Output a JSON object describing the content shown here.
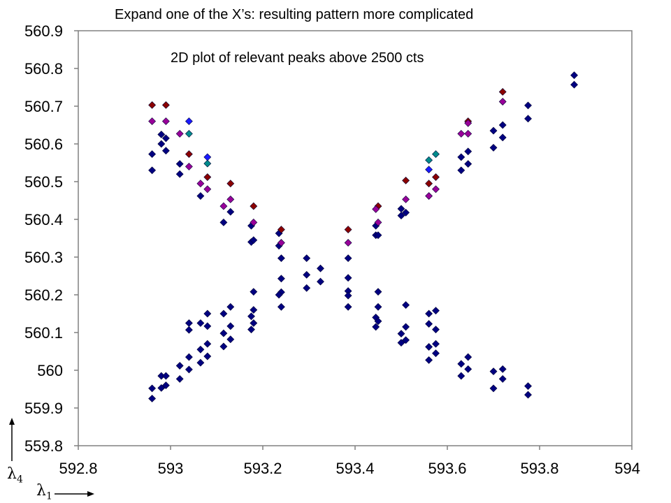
{
  "slide_title": "Expand one of the X’s:  resulting pattern more complicated",
  "axis_labels": {
    "y_symbol": "λ",
    "y_sub": "4",
    "x_symbol": "λ",
    "x_sub": "1"
  },
  "colors": {
    "navy": "#000080",
    "dark_red": "#8b0000",
    "purple": "#990099",
    "teal": "#008b8b",
    "blue": "#1a1aff",
    "plot_border": "#808080"
  },
  "chart_data": {
    "type": "scatter",
    "title": "2D plot of relevant peaks above 2500 cts",
    "xlabel": "λ1",
    "ylabel": "λ4",
    "xlim": [
      592.8,
      594.0
    ],
    "ylim": [
      559.8,
      560.9
    ],
    "x_ticks": [
      "592.8",
      "593",
      "593.2",
      "593.4",
      "593.6",
      "593.8",
      "594"
    ],
    "y_ticks": [
      "559.8",
      "559.9",
      "560",
      "560.1",
      "560.2",
      "560.3",
      "560.4",
      "560.5",
      "560.6",
      "560.7",
      "560.8",
      "560.9"
    ],
    "grid": false,
    "legend": false,
    "series": [
      {
        "color": "#000080",
        "points": [
          [
            592.96,
            560.573
          ],
          [
            592.96,
            560.53
          ],
          [
            592.98,
            560.625
          ],
          [
            592.98,
            560.6
          ],
          [
            592.99,
            560.615
          ],
          [
            592.99,
            560.582
          ],
          [
            593.02,
            560.547
          ],
          [
            593.02,
            560.52
          ],
          [
            593.065,
            560.462
          ],
          [
            593.115,
            560.392
          ],
          [
            593.13,
            560.42
          ],
          [
            593.175,
            560.383
          ],
          [
            593.175,
            560.34
          ],
          [
            593.18,
            560.345
          ],
          [
            593.235,
            560.363
          ],
          [
            593.235,
            560.33
          ],
          [
            593.24,
            560.297
          ],
          [
            593.24,
            560.243
          ],
          [
            593.24,
            560.207
          ],
          [
            593.235,
            560.2
          ],
          [
            593.24,
            560.168
          ],
          [
            593.295,
            560.297
          ],
          [
            593.295,
            560.253
          ],
          [
            593.295,
            560.218
          ],
          [
            593.325,
            560.27
          ],
          [
            593.325,
            560.235
          ],
          [
            593.385,
            560.297
          ],
          [
            593.385,
            560.245
          ],
          [
            593.385,
            560.21
          ],
          [
            593.385,
            560.198
          ],
          [
            593.385,
            560.168
          ],
          [
            593.445,
            560.383
          ],
          [
            593.445,
            560.358
          ],
          [
            593.45,
            560.358
          ],
          [
            593.445,
            560.14
          ],
          [
            593.445,
            560.115
          ],
          [
            593.45,
            560.208
          ],
          [
            593.45,
            560.168
          ],
          [
            593.45,
            560.13
          ],
          [
            593.5,
            560.428
          ],
          [
            593.5,
            560.41
          ],
          [
            593.51,
            560.418
          ],
          [
            593.51,
            560.173
          ],
          [
            593.51,
            560.115
          ],
          [
            593.5,
            560.097
          ],
          [
            593.5,
            560.073
          ],
          [
            593.51,
            560.08
          ],
          [
            593.56,
            560.15
          ],
          [
            593.56,
            560.123
          ],
          [
            593.56,
            560.062
          ],
          [
            593.56,
            560.027
          ],
          [
            593.575,
            560.158
          ],
          [
            593.575,
            560.108
          ],
          [
            593.575,
            560.07
          ],
          [
            593.575,
            560.045
          ],
          [
            593.63,
            560.565
          ],
          [
            593.63,
            560.53
          ],
          [
            593.645,
            560.58
          ],
          [
            593.645,
            560.547
          ],
          [
            593.63,
            560.017
          ],
          [
            593.63,
            559.985
          ],
          [
            593.645,
            560.035
          ],
          [
            593.645,
            560.003
          ],
          [
            593.7,
            560.635
          ],
          [
            593.7,
            560.59
          ],
          [
            593.72,
            560.65
          ],
          [
            593.72,
            560.617
          ],
          [
            593.7,
            559.997
          ],
          [
            593.7,
            559.952
          ],
          [
            593.72,
            560.003
          ],
          [
            593.72,
            559.977
          ],
          [
            593.775,
            560.702
          ],
          [
            593.775,
            560.667
          ],
          [
            593.775,
            559.958
          ],
          [
            593.775,
            559.935
          ],
          [
            593.875,
            560.782
          ],
          [
            593.875,
            560.757
          ],
          [
            592.96,
            559.952
          ],
          [
            592.96,
            559.925
          ],
          [
            592.98,
            559.985
          ],
          [
            592.98,
            559.953
          ],
          [
            592.99,
            559.985
          ],
          [
            592.99,
            559.96
          ],
          [
            593.02,
            560.012
          ],
          [
            593.02,
            559.977
          ],
          [
            593.04,
            560.125
          ],
          [
            593.04,
            560.107
          ],
          [
            593.04,
            560.035
          ],
          [
            593.04,
            560.002
          ],
          [
            593.065,
            560.125
          ],
          [
            593.065,
            560.055
          ],
          [
            593.065,
            560.02
          ],
          [
            593.08,
            560.15
          ],
          [
            593.08,
            560.117
          ],
          [
            593.08,
            560.07
          ],
          [
            593.08,
            560.037
          ],
          [
            593.115,
            560.15
          ],
          [
            593.115,
            560.098
          ],
          [
            593.115,
            560.063
          ],
          [
            593.13,
            560.168
          ],
          [
            593.13,
            560.117
          ],
          [
            593.13,
            560.082
          ],
          [
            593.175,
            560.143
          ],
          [
            593.175,
            560.108
          ],
          [
            593.18,
            560.208
          ],
          [
            593.18,
            560.16
          ],
          [
            593.18,
            560.125
          ]
        ]
      },
      {
        "color": "#8b0000",
        "points": [
          [
            592.96,
            560.703
          ],
          [
            592.99,
            560.703
          ],
          [
            593.04,
            560.573
          ],
          [
            593.08,
            560.512
          ],
          [
            593.13,
            560.495
          ],
          [
            593.18,
            560.435
          ],
          [
            593.24,
            560.373
          ],
          [
            593.385,
            560.373
          ],
          [
            593.45,
            560.435
          ],
          [
            593.51,
            560.503
          ],
          [
            593.56,
            560.495
          ],
          [
            593.575,
            560.512
          ],
          [
            593.645,
            560.66
          ],
          [
            593.72,
            560.738
          ]
        ]
      },
      {
        "color": "#990099",
        "points": [
          [
            592.96,
            560.66
          ],
          [
            592.99,
            560.66
          ],
          [
            593.02,
            560.627
          ],
          [
            593.04,
            560.54
          ],
          [
            593.065,
            560.495
          ],
          [
            593.08,
            560.48
          ],
          [
            593.115,
            560.435
          ],
          [
            593.13,
            560.453
          ],
          [
            593.18,
            560.392
          ],
          [
            593.24,
            560.338
          ],
          [
            593.385,
            560.338
          ],
          [
            593.445,
            560.427
          ],
          [
            593.45,
            560.392
          ],
          [
            593.51,
            560.453
          ],
          [
            593.56,
            560.462
          ],
          [
            593.575,
            560.48
          ],
          [
            593.63,
            560.627
          ],
          [
            593.645,
            560.627
          ],
          [
            593.645,
            560.655
          ],
          [
            593.72,
            560.712
          ]
        ]
      },
      {
        "color": "#008b8b",
        "points": [
          [
            593.04,
            560.627
          ],
          [
            593.08,
            560.548
          ],
          [
            593.56,
            560.557
          ],
          [
            593.575,
            560.573
          ]
        ]
      },
      {
        "color": "#1a1aff",
        "points": [
          [
            593.04,
            560.66
          ],
          [
            593.08,
            560.565
          ],
          [
            593.56,
            560.532
          ]
        ]
      }
    ]
  }
}
